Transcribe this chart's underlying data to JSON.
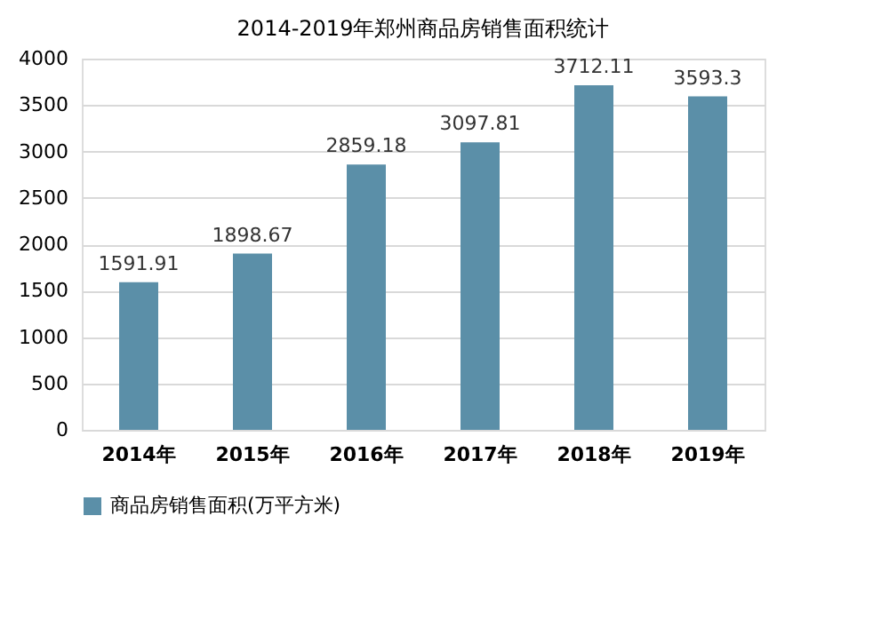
{
  "chart_data": {
    "type": "bar",
    "title": "2014-2019年郑州商品房销售面积统计",
    "categories": [
      "2014年",
      "2015年",
      "2016年",
      "2017年",
      "2018年",
      "2019年"
    ],
    "series": [
      {
        "name": "商品房销售面积(万平方米)",
        "color": "#5b8fa8",
        "values": [
          1591.91,
          1898.67,
          2859.18,
          3097.81,
          3712.11,
          3593.3
        ]
      }
    ],
    "ylim": [
      0,
      4000
    ],
    "yticks": [
      0,
      500,
      1000,
      1500,
      2000,
      2500,
      3000,
      3500,
      4000
    ],
    "grid": "y",
    "legend": "bottom",
    "data_labels": true
  }
}
